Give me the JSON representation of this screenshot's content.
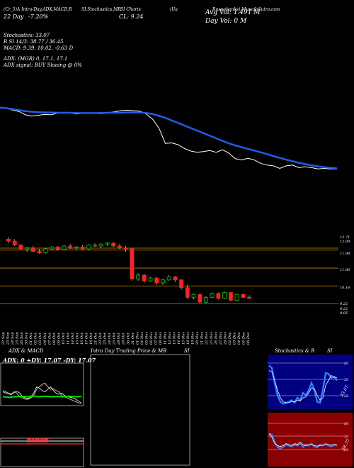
{
  "header": {
    "line1": [
      "(Cr_5)A Intra-Day,ADX,MACD,R",
      "SI,Stochastics,MR",
      "SI Charts",
      "(Ua",
      "Rusnobanks) MunafaSutra.com"
    ],
    "vol_label": "Avg Vol: 1.491 M",
    "day_label": "Day Vol: 0   M",
    "line2": [
      "22 Day ",
      "-7.20%",
      "CL: 9.24"
    ],
    "stoch_line": "Stochastics: 33.07",
    "rsi_line": "R                     SI 14/3: 38.77 / 36.45",
    "macd_line": "MACD: 9.39, 10.02, -0.63 D",
    "adx_line": "ADX:                           (MGR) 0, 17.1, 17.1",
    "adx_signal": "ADX  signal:                   BUY Sloaing @ 0%"
  },
  "price_axis": {
    "labels": [
      "12.71",
      "12.09",
      "11.99",
      "11.06",
      "10.14",
      "9.22",
      "9.22",
      "9.05"
    ]
  },
  "x_axis": {
    "dates": [
      "22 Sep",
      "23 Sep",
      "24 Sep",
      "25 Sep",
      "26 Sep",
      "30 Sep",
      "01 Oct",
      "02 Oct",
      "03 Oct",
      "04 Oct",
      "07 Oct",
      "08 Oct",
      "09 Oct",
      "10 Oct",
      "11 Oct",
      "14 Oct",
      "15 Oct",
      "16 Oct",
      "17 Oct",
      "18 Oct",
      "21 Oct",
      "22 Oct",
      "23 Oct",
      "24 Oct",
      "25 Oct",
      "28 Oct",
      "29 Oct",
      "30 Oct",
      "31 Oct",
      "01 Nov",
      "04 Nov",
      "05 Nov",
      "06 Nov",
      "07 Nov",
      "08 Nov",
      "11 Nov",
      "12 Nov",
      "13 Nov",
      "14 Nov",
      "15 Nov",
      "18 Nov",
      "19 Nov",
      "20 Nov",
      "21 Nov",
      "22 Nov",
      "25 Nov",
      "26 Nov",
      "27 Nov",
      "29 Nov",
      "02 Dec",
      "03 Dec",
      "04 Dec",
      "05 Dec",
      "06 Dec"
    ]
  },
  "panels": {
    "adx_title": "ADX  & MACD",
    "adx_values": "ADX: 0  +DY: 17.07 -DY: 17.07",
    "intra_title": "Intra  Day Trading Price  & MR",
    "intra_si": "SI",
    "stoch_title": "Stochastics & R",
    "stoch_si": "SI",
    "stoch_grid": [
      "80",
      "50",
      "20"
    ],
    "stoch_tag": "33.07",
    "rsi_grid": [
      "80",
      "50",
      "20"
    ],
    "rsi_tag": "38.77"
  },
  "colors": {
    "bull": "#00cc00",
    "bear": "#ff2020",
    "ma": "#1e5fe6",
    "rsi_bg": "#8b0000",
    "stoch_bg": "#000080",
    "guide": "#b8860b"
  },
  "chart_data": [
    {
      "type": "line",
      "title": "Price vs moving average (upper panel)",
      "series": [
        {
          "name": "Price",
          "values": [
            12.3,
            12.28,
            12.2,
            12.15,
            12.02,
            11.97,
            12.0,
            12.04,
            12.02,
            12.08,
            12.12,
            12.1,
            12.05,
            12.08,
            12.1,
            12.08,
            12.06,
            12.1,
            12.14,
            12.18,
            12.2,
            12.18,
            12.16,
            12.05,
            11.85,
            11.5,
            10.9,
            10.92,
            10.85,
            10.7,
            10.6,
            10.55,
            10.58,
            10.62,
            10.55,
            10.65,
            10.52,
            10.3,
            10.25,
            10.32,
            10.25,
            10.12,
            10.05,
            10.02,
            9.92,
            10.02,
            10.05,
            9.95,
            9.98,
            9.95,
            9.9,
            9.92,
            9.9,
            9.9
          ]
        },
        {
          "name": "Moving Average",
          "values": [
            12.3,
            12.28,
            12.24,
            12.2,
            12.16,
            12.14,
            12.12,
            12.11,
            12.11,
            12.1,
            12.1,
            12.1,
            12.09,
            12.09,
            12.09,
            12.09,
            12.09,
            12.1,
            12.1,
            12.1,
            12.11,
            12.11,
            12.11,
            12.09,
            12.05,
            11.98,
            11.9,
            11.8,
            11.7,
            11.6,
            11.5,
            11.4,
            11.3,
            11.2,
            11.1,
            11.0,
            10.9,
            10.82,
            10.75,
            10.68,
            10.62,
            10.55,
            10.48,
            10.4,
            10.33,
            10.26,
            10.2,
            10.14,
            10.09,
            10.04,
            10.0,
            9.97,
            9.94,
            9.92
          ]
        }
      ]
    },
    {
      "type": "candlestick",
      "title": "Daily candles",
      "ylim": [
        9.05,
        12.71
      ],
      "candles": [
        {
          "o": 12.55,
          "h": 12.65,
          "l": 12.35,
          "c": 12.45
        },
        {
          "o": 12.45,
          "h": 12.55,
          "l": 12.2,
          "c": 12.25
        },
        {
          "o": 12.25,
          "h": 12.3,
          "l": 12.0,
          "c": 12.05
        },
        {
          "o": 12.05,
          "h": 12.15,
          "l": 11.9,
          "c": 12.1
        },
        {
          "o": 12.1,
          "h": 12.2,
          "l": 11.88,
          "c": 11.92
        },
        {
          "o": 11.92,
          "h": 12.05,
          "l": 11.8,
          "c": 11.85
        },
        {
          "o": 11.85,
          "h": 12.1,
          "l": 11.8,
          "c": 12.05
        },
        {
          "o": 12.05,
          "h": 12.2,
          "l": 12.0,
          "c": 12.15
        },
        {
          "o": 12.15,
          "h": 12.2,
          "l": 11.98,
          "c": 12.02
        },
        {
          "o": 12.02,
          "h": 12.25,
          "l": 12.0,
          "c": 12.2
        },
        {
          "o": 12.2,
          "h": 12.3,
          "l": 12.05,
          "c": 12.1
        },
        {
          "o": 12.1,
          "h": 12.2,
          "l": 12.0,
          "c": 12.15
        },
        {
          "o": 12.15,
          "h": 12.25,
          "l": 12.0,
          "c": 12.05
        },
        {
          "o": 12.05,
          "h": 12.3,
          "l": 12.0,
          "c": 12.25
        },
        {
          "o": 12.25,
          "h": 12.35,
          "l": 12.15,
          "c": 12.2
        },
        {
          "o": 12.2,
          "h": 12.35,
          "l": 12.1,
          "c": 12.3
        },
        {
          "o": 12.3,
          "h": 12.4,
          "l": 12.2,
          "c": 12.35
        },
        {
          "o": 12.35,
          "h": 12.4,
          "l": 12.15,
          "c": 12.2
        },
        {
          "o": 12.2,
          "h": 12.3,
          "l": 12.05,
          "c": 12.1
        },
        {
          "o": 12.1,
          "h": 12.2,
          "l": 11.9,
          "c": 12.05
        },
        {
          "o": 12.05,
          "h": 12.1,
          "l": 10.4,
          "c": 10.5
        },
        {
          "o": 10.5,
          "h": 10.8,
          "l": 10.4,
          "c": 10.7
        },
        {
          "o": 10.7,
          "h": 10.75,
          "l": 10.3,
          "c": 10.4
        },
        {
          "o": 10.4,
          "h": 10.6,
          "l": 10.35,
          "c": 10.55
        },
        {
          "o": 10.55,
          "h": 10.6,
          "l": 10.2,
          "c": 10.3
        },
        {
          "o": 10.3,
          "h": 10.5,
          "l": 10.2,
          "c": 10.45
        },
        {
          "o": 10.45,
          "h": 10.7,
          "l": 10.4,
          "c": 10.6
        },
        {
          "o": 10.6,
          "h": 10.65,
          "l": 10.35,
          "c": 10.45
        },
        {
          "o": 10.45,
          "h": 10.5,
          "l": 9.95,
          "c": 10.05
        },
        {
          "o": 10.05,
          "h": 10.2,
          "l": 9.45,
          "c": 9.55
        },
        {
          "o": 9.55,
          "h": 9.75,
          "l": 9.45,
          "c": 9.7
        },
        {
          "o": 9.7,
          "h": 9.75,
          "l": 9.25,
          "c": 9.3
        },
        {
          "o": 9.3,
          "h": 9.6,
          "l": 9.25,
          "c": 9.55
        },
        {
          "o": 9.55,
          "h": 9.8,
          "l": 9.5,
          "c": 9.75
        },
        {
          "o": 9.75,
          "h": 9.8,
          "l": 9.45,
          "c": 9.5
        },
        {
          "o": 9.5,
          "h": 9.85,
          "l": 9.45,
          "c": 9.8
        },
        {
          "o": 9.8,
          "h": 9.82,
          "l": 9.35,
          "c": 9.4
        },
        {
          "o": 9.4,
          "h": 9.75,
          "l": 9.35,
          "c": 9.7
        },
        {
          "o": 9.7,
          "h": 9.75,
          "l": 9.5,
          "c": 9.55
        },
        {
          "o": 9.55,
          "h": 9.65,
          "l": 9.45,
          "c": 9.5
        }
      ]
    }
  ]
}
